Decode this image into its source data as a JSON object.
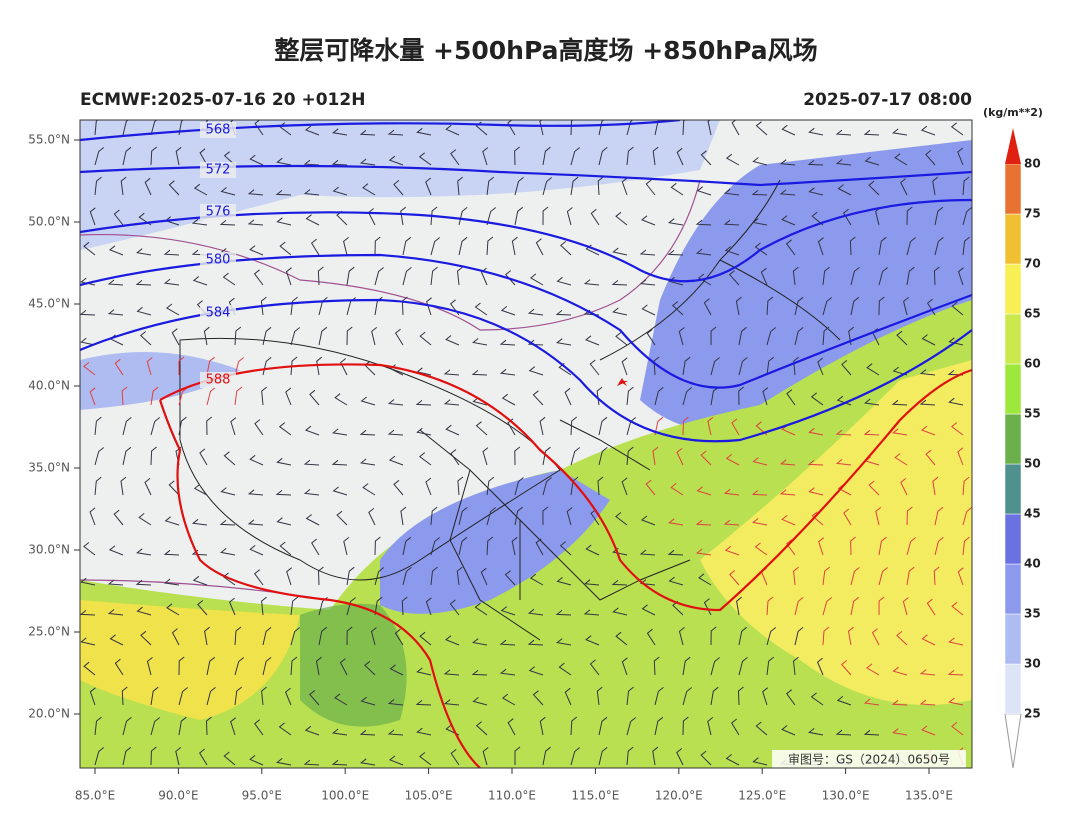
{
  "header": {
    "title": "整层可降水量 +500hPa高度场 +850hPa风场",
    "model_run": "ECMWF:2025-07-16 20 +012H",
    "valid_time": "2025-07-17 08:00"
  },
  "axes": {
    "lat_labels": [
      {
        "value": 55,
        "label": "55.0°N"
      },
      {
        "value": 50,
        "label": "50.0°N"
      },
      {
        "value": 45,
        "label": "45.0°N"
      },
      {
        "value": 40,
        "label": "40.0°N"
      },
      {
        "value": 35,
        "label": "35.0°N"
      },
      {
        "value": 30,
        "label": "30.0°N"
      },
      {
        "value": 25,
        "label": "25.0°N"
      },
      {
        "value": 20,
        "label": "20.0°N"
      }
    ],
    "lon_labels": [
      {
        "value": 85,
        "label": "85.0°E"
      },
      {
        "value": 90,
        "label": "90.0°E"
      },
      {
        "value": 95,
        "label": "95.0°E"
      },
      {
        "value": 100,
        "label": "100.0°E"
      },
      {
        "value": 105,
        "label": "105.0°E"
      },
      {
        "value": 110,
        "label": "110.0°E"
      },
      {
        "value": 115,
        "label": "115.0°E"
      },
      {
        "value": 120,
        "label": "120.0°E"
      },
      {
        "value": 125,
        "label": "125.0°E"
      },
      {
        "value": 130,
        "label": "130.0°E"
      },
      {
        "value": 135,
        "label": "135.0°E"
      }
    ]
  },
  "contours": [
    {
      "label": "568",
      "color": "#1a1ae0"
    },
    {
      "label": "572",
      "color": "#1a1ae0"
    },
    {
      "label": "576",
      "color": "#1a1ae0"
    },
    {
      "label": "580",
      "color": "#1a1ae0"
    },
    {
      "label": "584",
      "color": "#1a1ae0"
    },
    {
      "label": "588",
      "color": "#e01010"
    }
  ],
  "colorbar": {
    "unit": "(kg/m**2)",
    "levels": [
      25,
      30,
      35,
      40,
      45,
      50,
      55,
      60,
      65,
      70,
      75,
      80
    ],
    "colors": [
      "#dde4f6",
      "#aebcf2",
      "#8c9aee",
      "#6a72e2",
      "#4f918c",
      "#6cb04c",
      "#9ee83e",
      "#cbe84c",
      "#f8f052",
      "#f0c032",
      "#e87232",
      "#e02010"
    ]
  },
  "map_credit": "审图号：GS（2024）0650号"
}
